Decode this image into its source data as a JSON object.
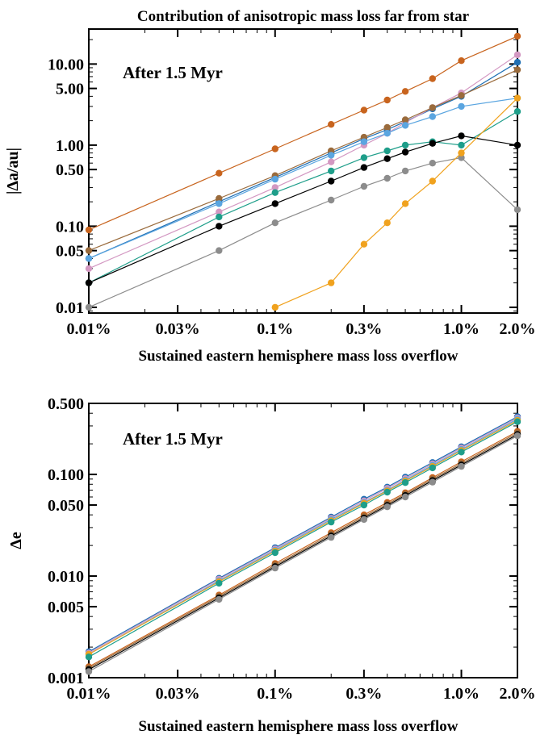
{
  "chart_data": [
    {
      "type": "line",
      "title": "Contribution of anisotropic mass loss far from star",
      "annotation": "After 1.5 Myr",
      "xlabel": "Sustained eastern hemisphere mass loss overflow",
      "ylabel": "|Δa/au|",
      "xscale": "log",
      "yscale": "log",
      "xlim": [
        0.01,
        2.0
      ],
      "ylim": [
        0.0085,
        27
      ],
      "grid": false,
      "x_ticks": [
        {
          "v": 0.01,
          "label": "0.01%"
        },
        {
          "v": 0.03,
          "label": "0.03%"
        },
        {
          "v": 0.1,
          "label": "0.1%"
        },
        {
          "v": 0.3,
          "label": "0.3%"
        },
        {
          "v": 1.0,
          "label": "1.0%"
        },
        {
          "v": 2.0,
          "label": "2.0%"
        }
      ],
      "y_ticks": [
        {
          "v": 0.01,
          "label": "0.01"
        },
        {
          "v": 0.05,
          "label": "0.05"
        },
        {
          "v": 0.1,
          "label": "0.10"
        },
        {
          "v": 0.5,
          "label": "0.50"
        },
        {
          "v": 1.0,
          "label": "1.00"
        },
        {
          "v": 5.0,
          "label": "5.00"
        },
        {
          "v": 10.0,
          "label": "10.00"
        }
      ],
      "x": [
        0.01,
        0.05,
        0.1,
        0.2,
        0.3,
        0.4,
        0.5,
        0.7,
        1.0,
        2.0
      ],
      "series": [
        {
          "color": "#c8641e",
          "values": [
            0.09,
            0.45,
            0.9,
            1.8,
            2.7,
            3.6,
            4.6,
            6.6,
            11.0,
            22.0
          ]
        },
        {
          "color": "#1f6fb4",
          "values": [
            0.04,
            0.2,
            0.4,
            0.8,
            1.2,
            1.55,
            1.95,
            2.8,
            4.0,
            10.5
          ]
        },
        {
          "color": "#d398c2",
          "values": [
            0.03,
            0.15,
            0.3,
            0.62,
            1.0,
            1.4,
            1.9,
            2.9,
            4.4,
            13.0
          ]
        },
        {
          "color": "#9a6b3c",
          "values": [
            0.05,
            0.22,
            0.42,
            0.85,
            1.25,
            1.65,
            2.05,
            2.9,
            4.1,
            8.5
          ]
        },
        {
          "color": "#5aa5e0",
          "values": [
            0.04,
            0.19,
            0.38,
            0.75,
            1.1,
            1.4,
            1.75,
            2.25,
            3.0,
            3.8
          ]
        },
        {
          "color": "#1e9e8a",
          "values": [
            0.02,
            0.13,
            0.26,
            0.48,
            0.7,
            0.85,
            1.0,
            1.1,
            1.0,
            2.6
          ]
        },
        {
          "color": "#000000",
          "values": [
            0.02,
            0.1,
            0.19,
            0.36,
            0.53,
            0.68,
            0.82,
            1.05,
            1.3,
            1.0
          ]
        },
        {
          "color": "#8c8c8c",
          "values": [
            0.01,
            0.05,
            0.11,
            0.21,
            0.31,
            0.39,
            0.48,
            0.6,
            0.7,
            0.16
          ]
        },
        {
          "color": "#f0a21e",
          "x": [
            0.1,
            0.2,
            0.3,
            0.4,
            0.5,
            0.7,
            1.0,
            2.0
          ],
          "values": [
            0.01,
            0.02,
            0.06,
            0.11,
            0.19,
            0.36,
            0.8,
            3.8
          ]
        }
      ]
    },
    {
      "type": "line",
      "title": "",
      "annotation": "After 1.5 Myr",
      "xlabel": "Sustained eastern hemisphere mass loss overflow",
      "ylabel": "Δe",
      "xscale": "log",
      "yscale": "log",
      "xlim": [
        0.01,
        2.0
      ],
      "ylim": [
        0.001,
        0.5
      ],
      "grid": false,
      "x_ticks": [
        {
          "v": 0.01,
          "label": "0.01%"
        },
        {
          "v": 0.03,
          "label": "0.03%"
        },
        {
          "v": 0.1,
          "label": "0.1%"
        },
        {
          "v": 0.3,
          "label": "0.3%"
        },
        {
          "v": 1.0,
          "label": "1.0%"
        },
        {
          "v": 2.0,
          "label": "2.0%"
        }
      ],
      "y_ticks": [
        {
          "v": 0.001,
          "label": "0.001"
        },
        {
          "v": 0.005,
          "label": "0.005"
        },
        {
          "v": 0.01,
          "label": "0.010"
        },
        {
          "v": 0.05,
          "label": "0.050"
        },
        {
          "v": 0.1,
          "label": "0.100"
        },
        {
          "v": 0.5,
          "label": "0.500"
        }
      ],
      "x": [
        0.01,
        0.05,
        0.1,
        0.2,
        0.3,
        0.4,
        0.5,
        0.7,
        1.0,
        2.0
      ],
      "series": [
        {
          "color": "#1f6fb4",
          "values": [
            0.0018,
            0.0095,
            0.019,
            0.038,
            0.057,
            0.075,
            0.094,
            0.131,
            0.187,
            0.37
          ]
        },
        {
          "color": "#d398c2",
          "values": [
            0.00175,
            0.0093,
            0.0185,
            0.037,
            0.055,
            0.073,
            0.091,
            0.127,
            0.182,
            0.36
          ]
        },
        {
          "color": "#5aa5e0",
          "values": [
            0.0017,
            0.009,
            0.018,
            0.036,
            0.053,
            0.07,
            0.088,
            0.123,
            0.176,
            0.35
          ]
        },
        {
          "color": "#f0a21e",
          "values": [
            0.0017,
            0.0088,
            0.0176,
            0.035,
            0.052,
            0.069,
            0.086,
            0.12,
            0.172,
            0.34
          ]
        },
        {
          "color": "#1e9e8a",
          "values": [
            0.0016,
            0.0085,
            0.017,
            0.034,
            0.05,
            0.067,
            0.083,
            0.116,
            0.166,
            0.33
          ]
        },
        {
          "color": "#c8641e",
          "values": [
            0.00128,
            0.0065,
            0.0133,
            0.0267,
            0.04,
            0.053,
            0.066,
            0.093,
            0.133,
            0.265
          ]
        },
        {
          "color": "#9a6b3c",
          "values": [
            0.00124,
            0.0063,
            0.0128,
            0.0257,
            0.0385,
            0.051,
            0.064,
            0.09,
            0.128,
            0.256
          ]
        },
        {
          "color": "#000000",
          "values": [
            0.0012,
            0.0061,
            0.0124,
            0.0248,
            0.0372,
            0.0495,
            0.062,
            0.087,
            0.124,
            0.247
          ]
        },
        {
          "color": "#8c8c8c",
          "values": [
            0.00115,
            0.0059,
            0.012,
            0.024,
            0.036,
            0.048,
            0.06,
            0.084,
            0.12,
            0.24
          ]
        }
      ]
    }
  ]
}
